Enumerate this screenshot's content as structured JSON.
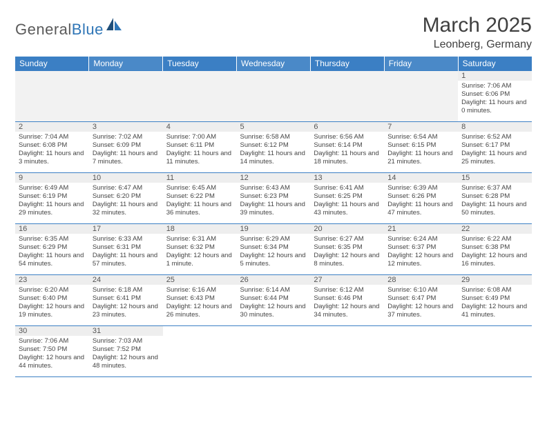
{
  "logo": {
    "text_general": "General",
    "text_blue": "Blue"
  },
  "header": {
    "title": "March 2025",
    "location": "Leonberg, Germany"
  },
  "colors": {
    "header_bg": "#3b7fc4",
    "header_bg_alt": "#4a89c8",
    "border": "#3b7fc4",
    "daynum_bg": "#eeeeee",
    "text": "#404040"
  },
  "weekdays": [
    "Sunday",
    "Monday",
    "Tuesday",
    "Wednesday",
    "Thursday",
    "Friday",
    "Saturday"
  ],
  "weeks": [
    [
      null,
      null,
      null,
      null,
      null,
      null,
      {
        "num": "1",
        "sunrise": "Sunrise: 7:06 AM",
        "sunset": "Sunset: 6:06 PM",
        "daylight": "Daylight: 11 hours and 0 minutes."
      }
    ],
    [
      {
        "num": "2",
        "sunrise": "Sunrise: 7:04 AM",
        "sunset": "Sunset: 6:08 PM",
        "daylight": "Daylight: 11 hours and 3 minutes."
      },
      {
        "num": "3",
        "sunrise": "Sunrise: 7:02 AM",
        "sunset": "Sunset: 6:09 PM",
        "daylight": "Daylight: 11 hours and 7 minutes."
      },
      {
        "num": "4",
        "sunrise": "Sunrise: 7:00 AM",
        "sunset": "Sunset: 6:11 PM",
        "daylight": "Daylight: 11 hours and 11 minutes."
      },
      {
        "num": "5",
        "sunrise": "Sunrise: 6:58 AM",
        "sunset": "Sunset: 6:12 PM",
        "daylight": "Daylight: 11 hours and 14 minutes."
      },
      {
        "num": "6",
        "sunrise": "Sunrise: 6:56 AM",
        "sunset": "Sunset: 6:14 PM",
        "daylight": "Daylight: 11 hours and 18 minutes."
      },
      {
        "num": "7",
        "sunrise": "Sunrise: 6:54 AM",
        "sunset": "Sunset: 6:15 PM",
        "daylight": "Daylight: 11 hours and 21 minutes."
      },
      {
        "num": "8",
        "sunrise": "Sunrise: 6:52 AM",
        "sunset": "Sunset: 6:17 PM",
        "daylight": "Daylight: 11 hours and 25 minutes."
      }
    ],
    [
      {
        "num": "9",
        "sunrise": "Sunrise: 6:49 AM",
        "sunset": "Sunset: 6:19 PM",
        "daylight": "Daylight: 11 hours and 29 minutes."
      },
      {
        "num": "10",
        "sunrise": "Sunrise: 6:47 AM",
        "sunset": "Sunset: 6:20 PM",
        "daylight": "Daylight: 11 hours and 32 minutes."
      },
      {
        "num": "11",
        "sunrise": "Sunrise: 6:45 AM",
        "sunset": "Sunset: 6:22 PM",
        "daylight": "Daylight: 11 hours and 36 minutes."
      },
      {
        "num": "12",
        "sunrise": "Sunrise: 6:43 AM",
        "sunset": "Sunset: 6:23 PM",
        "daylight": "Daylight: 11 hours and 39 minutes."
      },
      {
        "num": "13",
        "sunrise": "Sunrise: 6:41 AM",
        "sunset": "Sunset: 6:25 PM",
        "daylight": "Daylight: 11 hours and 43 minutes."
      },
      {
        "num": "14",
        "sunrise": "Sunrise: 6:39 AM",
        "sunset": "Sunset: 6:26 PM",
        "daylight": "Daylight: 11 hours and 47 minutes."
      },
      {
        "num": "15",
        "sunrise": "Sunrise: 6:37 AM",
        "sunset": "Sunset: 6:28 PM",
        "daylight": "Daylight: 11 hours and 50 minutes."
      }
    ],
    [
      {
        "num": "16",
        "sunrise": "Sunrise: 6:35 AM",
        "sunset": "Sunset: 6:29 PM",
        "daylight": "Daylight: 11 hours and 54 minutes."
      },
      {
        "num": "17",
        "sunrise": "Sunrise: 6:33 AM",
        "sunset": "Sunset: 6:31 PM",
        "daylight": "Daylight: 11 hours and 57 minutes."
      },
      {
        "num": "18",
        "sunrise": "Sunrise: 6:31 AM",
        "sunset": "Sunset: 6:32 PM",
        "daylight": "Daylight: 12 hours and 1 minute."
      },
      {
        "num": "19",
        "sunrise": "Sunrise: 6:29 AM",
        "sunset": "Sunset: 6:34 PM",
        "daylight": "Daylight: 12 hours and 5 minutes."
      },
      {
        "num": "20",
        "sunrise": "Sunrise: 6:27 AM",
        "sunset": "Sunset: 6:35 PM",
        "daylight": "Daylight: 12 hours and 8 minutes."
      },
      {
        "num": "21",
        "sunrise": "Sunrise: 6:24 AM",
        "sunset": "Sunset: 6:37 PM",
        "daylight": "Daylight: 12 hours and 12 minutes."
      },
      {
        "num": "22",
        "sunrise": "Sunrise: 6:22 AM",
        "sunset": "Sunset: 6:38 PM",
        "daylight": "Daylight: 12 hours and 16 minutes."
      }
    ],
    [
      {
        "num": "23",
        "sunrise": "Sunrise: 6:20 AM",
        "sunset": "Sunset: 6:40 PM",
        "daylight": "Daylight: 12 hours and 19 minutes."
      },
      {
        "num": "24",
        "sunrise": "Sunrise: 6:18 AM",
        "sunset": "Sunset: 6:41 PM",
        "daylight": "Daylight: 12 hours and 23 minutes."
      },
      {
        "num": "25",
        "sunrise": "Sunrise: 6:16 AM",
        "sunset": "Sunset: 6:43 PM",
        "daylight": "Daylight: 12 hours and 26 minutes."
      },
      {
        "num": "26",
        "sunrise": "Sunrise: 6:14 AM",
        "sunset": "Sunset: 6:44 PM",
        "daylight": "Daylight: 12 hours and 30 minutes."
      },
      {
        "num": "27",
        "sunrise": "Sunrise: 6:12 AM",
        "sunset": "Sunset: 6:46 PM",
        "daylight": "Daylight: 12 hours and 34 minutes."
      },
      {
        "num": "28",
        "sunrise": "Sunrise: 6:10 AM",
        "sunset": "Sunset: 6:47 PM",
        "daylight": "Daylight: 12 hours and 37 minutes."
      },
      {
        "num": "29",
        "sunrise": "Sunrise: 6:08 AM",
        "sunset": "Sunset: 6:49 PM",
        "daylight": "Daylight: 12 hours and 41 minutes."
      }
    ],
    [
      {
        "num": "30",
        "sunrise": "Sunrise: 7:06 AM",
        "sunset": "Sunset: 7:50 PM",
        "daylight": "Daylight: 12 hours and 44 minutes."
      },
      {
        "num": "31",
        "sunrise": "Sunrise: 7:03 AM",
        "sunset": "Sunset: 7:52 PM",
        "daylight": "Daylight: 12 hours and 48 minutes."
      },
      null,
      null,
      null,
      null,
      null
    ]
  ]
}
